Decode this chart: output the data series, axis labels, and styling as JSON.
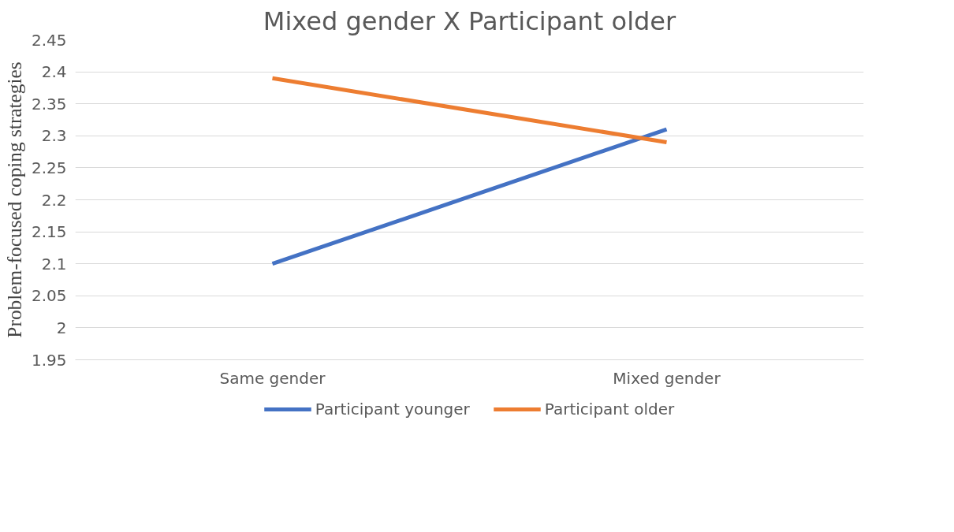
{
  "chart_data": {
    "type": "line",
    "title": "Mixed gender X Participant older",
    "ylabel": "Problem-focused coping strategies",
    "categories": [
      "Same gender",
      "Mixed gender"
    ],
    "series": [
      {
        "name": "Participant younger",
        "color": "#4472c4",
        "values": [
          2.1,
          2.31
        ]
      },
      {
        "name": "Participant older",
        "color": "#ed7d31",
        "values": [
          2.39,
          2.29
        ]
      }
    ],
    "ylim": [
      1.95,
      2.45
    ],
    "yticks": [
      1.95,
      2,
      2.05,
      2.1,
      2.15,
      2.2,
      2.25,
      2.3,
      2.35,
      2.4,
      2.45
    ],
    "grid": "y",
    "legend": "bottom",
    "marker": "none",
    "line_style": "solid"
  }
}
